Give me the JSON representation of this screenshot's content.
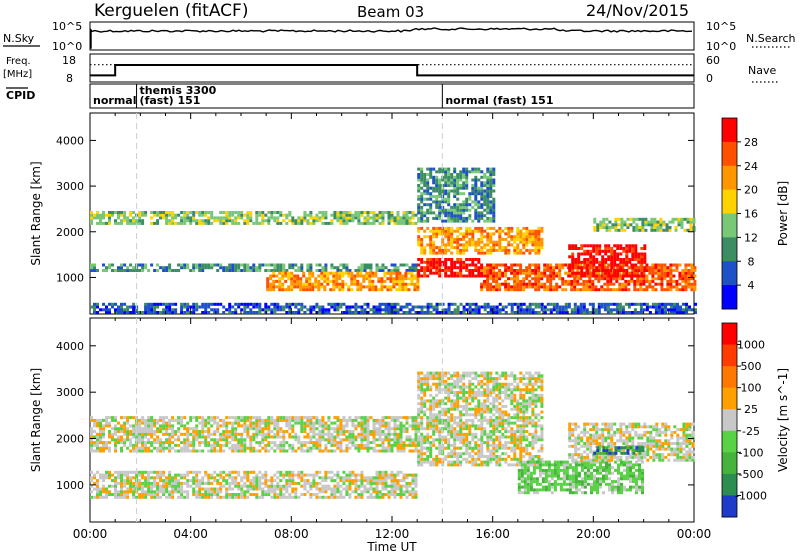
{
  "header": {
    "station": "Kerguelen (fitACF)",
    "beam": "Beam 03",
    "date": "24/Nov/2015"
  },
  "top_panels": {
    "nsky_label": "N.Sky",
    "nsky_ticks": [
      "10^5",
      "10^0"
    ],
    "nsearch_label": "N.Search",
    "nsearch_ticks": [
      "10^5",
      "10^0"
    ],
    "freq_label_1": "Freq.",
    "freq_label_2": "[MHz]",
    "freq_ticks": [
      "18",
      "8"
    ],
    "nave_label": "Nave",
    "nave_ticks": [
      "60",
      "0"
    ],
    "cpid_label": "CPID",
    "cpid_segments": [
      {
        "start_h": 0.0,
        "line1": "normal",
        "line2": ""
      },
      {
        "start_h": 1.85,
        "line1": "themis 3300",
        "line2": "(fast) 151"
      },
      {
        "start_h": 14.0,
        "line1": "normal (fast) 151",
        "line2": ""
      }
    ],
    "freq_steps": [
      {
        "t0": 0.0,
        "t1": 1.0,
        "mhz": 10.0
      },
      {
        "t0": 1.0,
        "t1": 13.0,
        "mhz": 14.5
      },
      {
        "t0": 13.0,
        "t1": 24.0,
        "mhz": 10.0
      }
    ],
    "nave_level": 40
  },
  "chart_data": [
    {
      "type": "heatmap",
      "title": "Power",
      "ylabel": "Slant Range [km]",
      "xlabel": "Time UT",
      "x_ticks": [
        "00:00",
        "04:00",
        "08:00",
        "12:00",
        "16:00",
        "20:00",
        "00:00"
      ],
      "x_tick_hours": [
        0,
        4,
        8,
        12,
        16,
        20,
        24
      ],
      "xlim": [
        0,
        24
      ],
      "ylim": [
        200,
        4600
      ],
      "y_ticks": [
        1000,
        2000,
        3000,
        4000
      ],
      "colorbar_label": "Power [dB]",
      "colorbar_ticks": [
        "28",
        "24",
        "20",
        "16",
        "12",
        "8",
        "4"
      ],
      "colors": [
        "#0000ff",
        "#1e50c8",
        "#3c8c64",
        "#78c878",
        "#ffd200",
        "#ff9600",
        "#ff5000",
        "#ff0000"
      ],
      "bands": [
        {
          "t0": 0.0,
          "t1": 13.0,
          "r0": 2150,
          "r1": 2450,
          "level": 3
        },
        {
          "t0": 0.0,
          "t1": 13.0,
          "r0": 1120,
          "r1": 1260,
          "level": 2
        },
        {
          "t0": 7.0,
          "t1": 13.0,
          "r0": 700,
          "r1": 1100,
          "level": 5
        },
        {
          "t0": 13.0,
          "t1": 15.5,
          "r0": 1000,
          "r1": 1400,
          "level": 7
        },
        {
          "t0": 15.5,
          "t1": 24.0,
          "r0": 700,
          "r1": 1300,
          "level": 6
        },
        {
          "t0": 13.0,
          "t1": 18.0,
          "r0": 1500,
          "r1": 2100,
          "level": 5
        },
        {
          "t0": 19.0,
          "t1": 22.0,
          "r0": 1000,
          "r1": 1700,
          "level": 7
        },
        {
          "t0": 20.0,
          "t1": 24.0,
          "r0": 2000,
          "r1": 2300,
          "level": 3
        },
        {
          "t0": 13.0,
          "t1": 16.0,
          "r0": 2200,
          "r1": 3400,
          "level": 2
        },
        {
          "t0": 0.0,
          "t1": 24.0,
          "r0": 200,
          "r1": 400,
          "level": 1
        }
      ]
    },
    {
      "type": "heatmap",
      "title": "Velocity",
      "ylabel": "Slant Range [km]",
      "xlabel": "Time UT",
      "x_ticks": [
        "00:00",
        "04:00",
        "08:00",
        "12:00",
        "16:00",
        "20:00",
        "00:00"
      ],
      "x_tick_hours": [
        0,
        4,
        8,
        12,
        16,
        20,
        24
      ],
      "xlim": [
        0,
        24
      ],
      "ylim": [
        200,
        4600
      ],
      "y_ticks": [
        1000,
        2000,
        3000,
        4000
      ],
      "colorbar_label": "Velocity [m s^-1]",
      "colorbar_ticks": [
        "1000",
        "500",
        "100",
        "25",
        "-25",
        "-100",
        "-500",
        "-1000"
      ],
      "colors": [
        "#1e3cc8",
        "#2d8c50",
        "#46b43c",
        "#5ad246",
        "#c8c8c8",
        "#ffa000",
        "#ff7800",
        "#ff3c00",
        "#ff0000"
      ],
      "bands": [
        {
          "t0": 0.0,
          "t1": 13.0,
          "r0": 1700,
          "r1": 2450,
          "level": 4
        },
        {
          "t0": 0.0,
          "t1": 13.0,
          "r0": 700,
          "r1": 1300,
          "level": 4
        },
        {
          "t0": 13.0,
          "t1": 18.0,
          "r0": 1400,
          "r1": 3400,
          "level": 4
        },
        {
          "t0": 17.0,
          "t1": 22.0,
          "r0": 800,
          "r1": 1500,
          "level": 3
        },
        {
          "t0": 19.0,
          "t1": 24.0,
          "r0": 1500,
          "r1": 2300,
          "level": 4
        },
        {
          "t0": 20.0,
          "t1": 22.0,
          "r0": 1650,
          "r1": 1800,
          "level": 1
        }
      ]
    }
  ]
}
